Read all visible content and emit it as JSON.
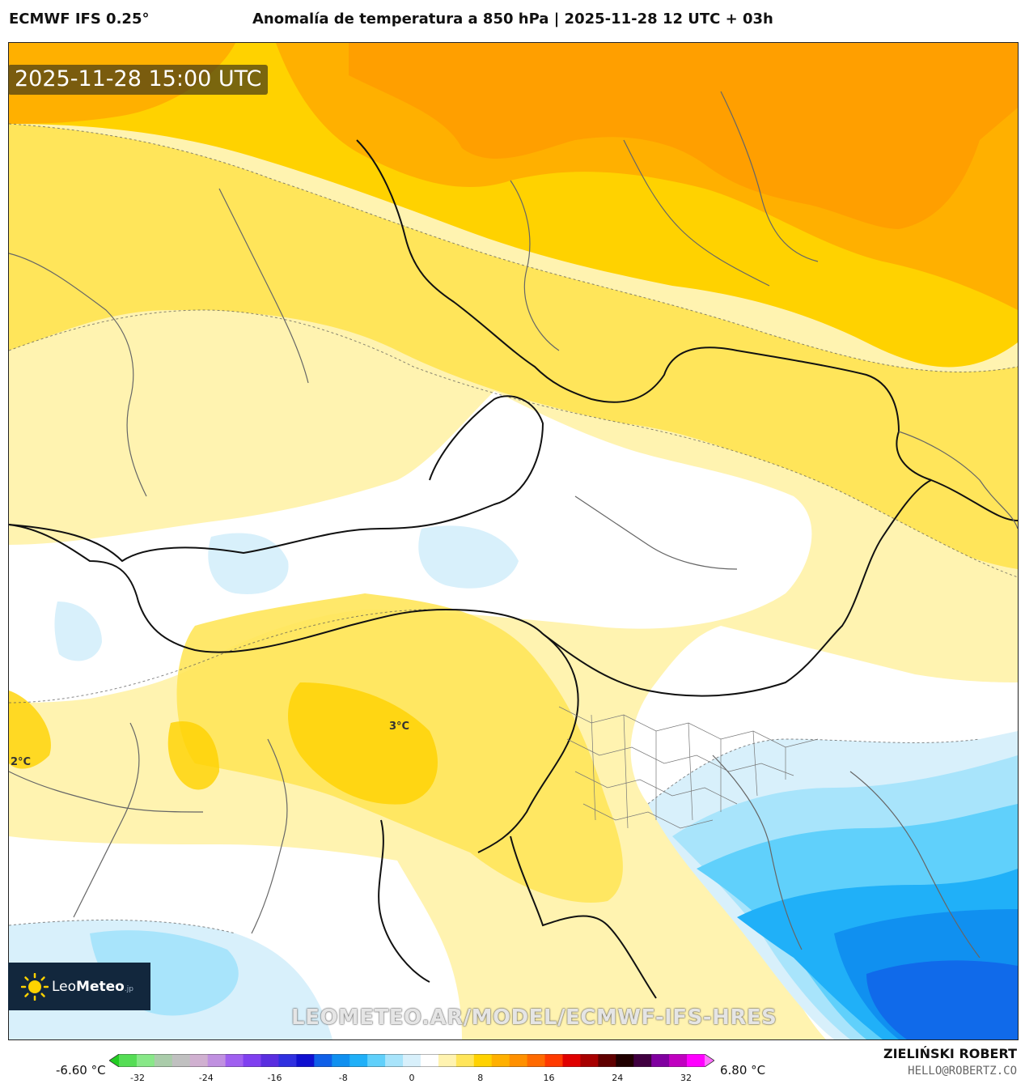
{
  "header": {
    "model": "ECMWF IFS 0.25°",
    "title": "Anomalía de temperatura a 850 hPa | 2025-11-28 12 UTC + 03h"
  },
  "map": {
    "timestamp": "2025-11-28 15:00 UTC",
    "contour_labels": [
      "3°C",
      "2°C"
    ],
    "watermark": "LEOMETEO.AR/MODEL/ECMWF-IFS-HRES"
  },
  "logo": {
    "name_light": "Leo",
    "name_bold": "Meteo",
    "suffix": ".jp"
  },
  "colorbar": {
    "min_label": "-6.60 °C",
    "max_label": "6.80 °C",
    "ticks": [
      "-32",
      "-24",
      "-16",
      "-8",
      "0",
      "8",
      "16",
      "24",
      "32"
    ],
    "colors": [
      "#22cc22",
      "#55dd55",
      "#88e888",
      "#aaccaa",
      "#c0c0c0",
      "#d0b0d0",
      "#c090e0",
      "#a060f0",
      "#8040f0",
      "#5a2ee0",
      "#3030e0",
      "#1010d0",
      "#1060e8",
      "#1090f0",
      "#20b0f8",
      "#60d0fb",
      "#a8e4fb",
      "#d8f0fb",
      "#ffffff",
      "#fff3b0",
      "#ffe55a",
      "#ffd200",
      "#ffb000",
      "#ff9000",
      "#ff6a00",
      "#ff3a00",
      "#e00000",
      "#a80000",
      "#600000",
      "#200000",
      "#400040",
      "#8000a0",
      "#c000c0",
      "#ff00ff",
      "#ff70ff"
    ]
  },
  "footer": {
    "author": "ZIELIŃSKI ROBERT",
    "email": "HELLO@ROBERTZ.CO"
  }
}
